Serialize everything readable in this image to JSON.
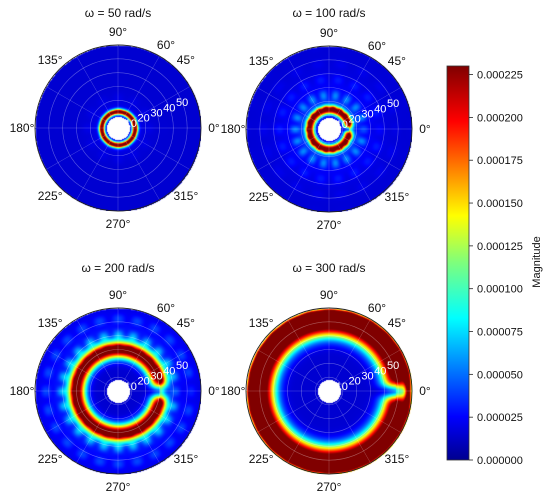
{
  "chart_data": {
    "type": "heatmap",
    "plot_kind": "polar",
    "colormap": "jet",
    "colorbar": {
      "label": "Magnitude",
      "min": 0,
      "max": 0.00023,
      "ticks": [
        "0.000225",
        "0.000200",
        "0.000175",
        "0.000150",
        "0.000125",
        "0.000100",
        "0.000075",
        "0.000050",
        "0.000025",
        "0.000000"
      ],
      "tick_values": [
        0.000225,
        0.0002,
        0.000175,
        0.00015,
        0.000125,
        0.0001,
        7.5e-05,
        5e-05,
        2.5e-05,
        0
      ]
    },
    "panels": [
      {
        "title": "ω = 50 rad/s",
        "angle_ticks": [
          "90°",
          "60°",
          "45°",
          "0°",
          "315°",
          "270°",
          "225°",
          "180°",
          "135°"
        ],
        "radial_ticks": [
          "10",
          "20",
          "30",
          "40",
          "50"
        ],
        "r_max": 60,
        "features": {
          "ring_radius": 12,
          "ring_width": 2,
          "ring_peak": 1.0,
          "ripple_amp": 0.12,
          "ripple_count": 12,
          "ripple_decay": 6,
          "gap_angle": 0
        }
      },
      {
        "title": "ω = 100 rad/s",
        "angle_ticks": [
          "90°",
          "60°",
          "45°",
          "0°",
          "315°",
          "270°",
          "225°",
          "180°",
          "135°"
        ],
        "radial_ticks": [
          "10",
          "20",
          "30",
          "40",
          "50"
        ],
        "r_max": 60,
        "features": {
          "ring_radius": 14,
          "ring_width": 3,
          "ring_peak": 0.95,
          "ripple_amp": 0.45,
          "ripple_count": 18,
          "ripple_decay": 12,
          "gap_angle": 25
        }
      },
      {
        "title": "ω = 200 rad/s",
        "angle_ticks": [
          "90°",
          "60°",
          "45°",
          "0°",
          "315°",
          "270°",
          "225°",
          "180°",
          "135°"
        ],
        "radial_ticks": [
          "10",
          "20",
          "30",
          "40",
          "50"
        ],
        "r_max": 60,
        "features": {
          "ring_radius": 30,
          "ring_width": 6,
          "ring_peak": 1.0,
          "ripple_amp": 0.35,
          "ripple_count": 24,
          "ripple_decay": 20,
          "gap_angle": 30
        }
      },
      {
        "title": "ω = 300 rad/s",
        "angle_ticks": [
          "90°",
          "60°",
          "45°",
          "0°",
          "315°",
          "270°",
          "225°",
          "180°",
          "135°"
        ],
        "radial_ticks": [
          "10",
          "20",
          "30",
          "40",
          "50"
        ],
        "r_max": 60,
        "features": {
          "ring_radius": 48,
          "ring_width": 9,
          "ring_peak": 1.0,
          "ripple_amp": 0.15,
          "ripple_count": 24,
          "ripple_decay": 30,
          "gap_angle": 20
        }
      }
    ]
  }
}
